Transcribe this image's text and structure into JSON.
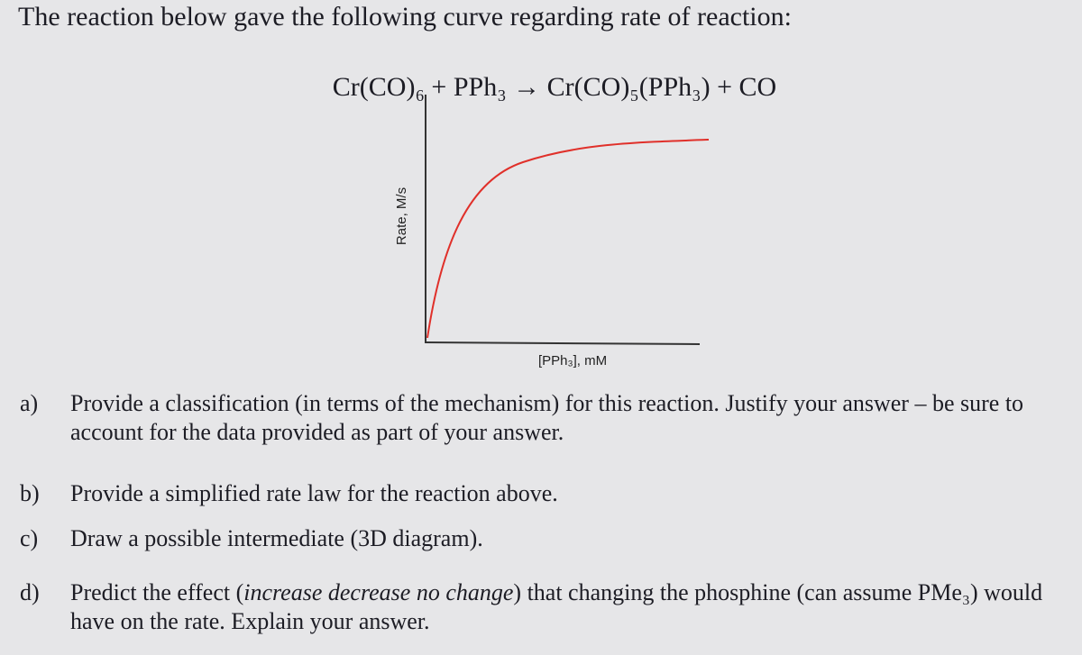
{
  "intro": "The reaction below gave the following curve regarding rate of reaction:",
  "equation": "Cr(CO)₆ + PPh₃ → Cr(CO)₅(PPh₃) + CO",
  "figure": {
    "y_label": "Rate, M/s",
    "x_label": "[PPh₃], mM"
  },
  "questions": [
    {
      "label": "a)",
      "parts": [
        "Provide a classification (in terms of the mechanism) for this reaction.  Justify your answer – be sure to account for the data provided as part of your answer."
      ]
    },
    {
      "label": "b)",
      "parts": [
        "Provide a simplified rate law for the reaction above."
      ]
    },
    {
      "label": "c)",
      "parts": [
        "Draw a possible intermediate (3D diagram)."
      ]
    },
    {
      "label": "d)",
      "parts": [
        "Predict the effect (",
        "increase decrease no change",
        ") that changing the phosphine (can assume PMe₃) would have on the rate.  Explain your answer."
      ]
    }
  ]
}
